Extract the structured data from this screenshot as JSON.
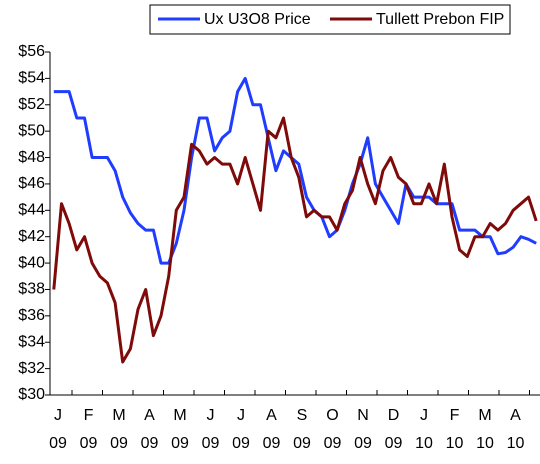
{
  "chart_data": {
    "type": "line",
    "month_labels": [
      "J",
      "F",
      "M",
      "A",
      "M",
      "J",
      "J",
      "A",
      "S",
      "O",
      "N",
      "D",
      "J",
      "F",
      "M",
      "A"
    ],
    "year_labels": [
      "09",
      "09",
      "09",
      "09",
      "09",
      "09",
      "09",
      "09",
      "09",
      "09",
      "09",
      "09",
      "10",
      "10",
      "10",
      "10"
    ],
    "ylim": [
      30,
      56
    ],
    "yticks": [
      {
        "value": 30,
        "label": "$30"
      },
      {
        "value": 32,
        "label": "$32"
      },
      {
        "value": 34,
        "label": "$34"
      },
      {
        "value": 36,
        "label": "$36"
      },
      {
        "value": 38,
        "label": "$38"
      },
      {
        "value": 40,
        "label": "$40"
      },
      {
        "value": 42,
        "label": "$42"
      },
      {
        "value": 44,
        "label": "$44"
      },
      {
        "value": 46,
        "label": "$46"
      },
      {
        "value": 48,
        "label": "$48"
      },
      {
        "value": 50,
        "label": "$50"
      },
      {
        "value": 52,
        "label": "$52"
      },
      {
        "value": 54,
        "label": "$54"
      },
      {
        "value": 56,
        "label": "$56"
      }
    ],
    "grid": false,
    "legend": "top",
    "series": [
      {
        "name": "Ux U3O8 Price",
        "color": "#1f3cff",
        "values": [
          53,
          53,
          53,
          51,
          51,
          48,
          48,
          48,
          47,
          45,
          43.8,
          43,
          42.5,
          42.5,
          40,
          40,
          41.5,
          44,
          48,
          51,
          51,
          48.5,
          49.5,
          50,
          53,
          54,
          52,
          52,
          49.5,
          47,
          48.5,
          48,
          47.5,
          45,
          44,
          43.5,
          42,
          42.5,
          44,
          46,
          47.5,
          49.5,
          46,
          45,
          44,
          43,
          46,
          45,
          45,
          45,
          44.5,
          44.5,
          44.5,
          42.5,
          42.5,
          42.5,
          42,
          42,
          40.7,
          40.8,
          41.2,
          42,
          41.8,
          41.5
        ]
      },
      {
        "name": "Tullett Prebon FIP",
        "color": "#7f0a0a",
        "values": [
          38,
          44.5,
          43,
          41,
          42,
          40,
          39,
          38.5,
          37,
          32.5,
          33.5,
          36.5,
          38,
          34.5,
          36,
          39,
          44,
          45,
          49,
          48.5,
          47.5,
          48,
          47.5,
          47.5,
          46,
          48,
          46,
          44,
          50,
          49.5,
          51,
          48,
          46.5,
          43.5,
          44,
          43.5,
          43.5,
          42.5,
          44.5,
          45.5,
          48,
          46,
          44.5,
          47,
          48,
          46.5,
          46,
          44.5,
          44.5,
          46,
          44.5,
          47.5,
          43.5,
          41,
          40.5,
          42,
          42,
          43,
          42.5,
          43,
          44,
          44.5,
          45,
          43.2
        ]
      }
    ]
  }
}
